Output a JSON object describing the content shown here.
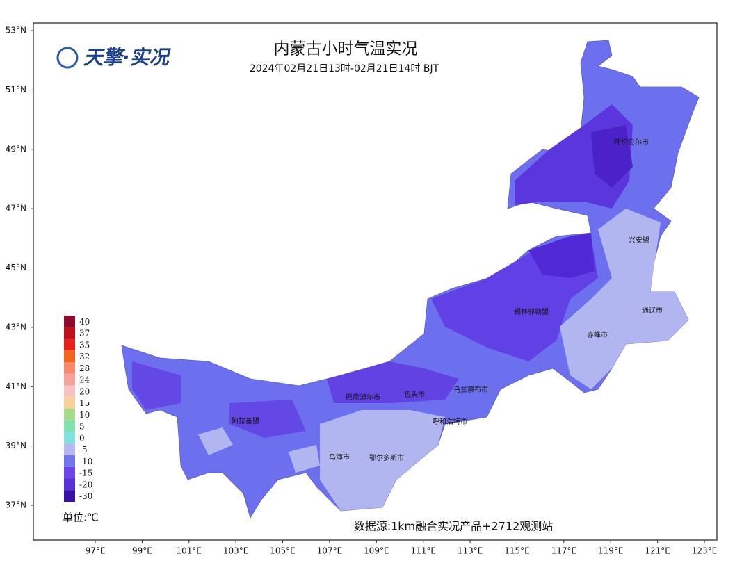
{
  "map": {
    "logo": "天擎·实况",
    "title": "内蒙古小时气温实况",
    "subtitle": "2024年02月21日13时-02月21日14时 BJT",
    "lat_ticks": [
      {
        "value": 53,
        "label": "53°N"
      },
      {
        "value": 51,
        "label": "51°N"
      },
      {
        "value": 49,
        "label": "49°N"
      },
      {
        "value": 47,
        "label": "47°N"
      },
      {
        "value": 45,
        "label": "45°N"
      },
      {
        "value": 43,
        "label": "43°N"
      },
      {
        "value": 41,
        "label": "41°N"
      },
      {
        "value": 39,
        "label": "39°N"
      },
      {
        "value": 37,
        "label": "37°N"
      }
    ],
    "lon_ticks": [
      {
        "value": 97,
        "label": "97°E"
      },
      {
        "value": 99,
        "label": "99°E"
      },
      {
        "value": 101,
        "label": "101°E"
      },
      {
        "value": 103,
        "label": "103°E"
      },
      {
        "value": 105,
        "label": "105°E"
      },
      {
        "value": 107,
        "label": "107°E"
      },
      {
        "value": 109,
        "label": "109°E"
      },
      {
        "value": 111,
        "label": "111°E"
      },
      {
        "value": 113,
        "label": "113°E"
      },
      {
        "value": 115,
        "label": "115°E"
      },
      {
        "value": 117,
        "label": "117°E"
      },
      {
        "value": 119,
        "label": "119°E"
      },
      {
        "value": 121,
        "label": "121°E"
      },
      {
        "value": 123,
        "label": "123°E"
      }
    ],
    "cities": [
      "呼伦贝尔市",
      "兴安盟",
      "通辽市",
      "锡林郭勒盟",
      "赤峰市",
      "乌兰察布市",
      "包头市",
      "巴彦淖尔市",
      "呼和浩特市",
      "阿拉善盟",
      "乌海市",
      "鄂尔多斯市"
    ],
    "legend": [
      {
        "value": 40,
        "color": "#8b0a2e"
      },
      {
        "value": 37,
        "color": "#c0101c"
      },
      {
        "value": 35,
        "color": "#e8211f"
      },
      {
        "value": 32,
        "color": "#f5641b"
      },
      {
        "value": 28,
        "color": "#f78a6c"
      },
      {
        "value": 24,
        "color": "#f5a39a"
      },
      {
        "value": 20,
        "color": "#f7c2c0"
      },
      {
        "value": 15,
        "color": "#f8d09a"
      },
      {
        "value": 10,
        "color": "#a8d98a"
      },
      {
        "value": 5,
        "color": "#80e0b0"
      },
      {
        "value": 0,
        "color": "#7fe0e0"
      },
      {
        "value": -5,
        "color": "#b4b8f0"
      },
      {
        "value": -10,
        "color": "#7077ee"
      },
      {
        "value": -15,
        "color": "#6a45e8"
      },
      {
        "value": -20,
        "color": "#5a2ed8"
      },
      {
        "value": -30,
        "color": "#3a10a8"
      }
    ],
    "unit": "单位:℃",
    "source": "数据源:1km融合实况产品+2712观测站"
  }
}
